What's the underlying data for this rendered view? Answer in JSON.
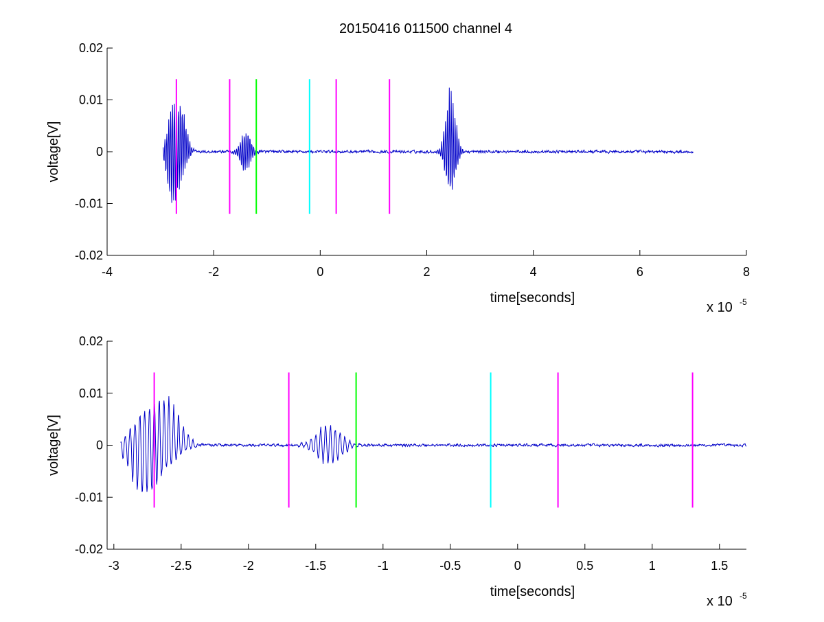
{
  "figure": {
    "title": "20150416 011500 channel 4",
    "background": "#ffffff",
    "signal_color": "#0000c8"
  },
  "chart_data": [
    {
      "type": "line",
      "id": "top",
      "xlabel": "time[seconds]",
      "ylabel": "voltage[V]",
      "x_exponent_base": "x 10",
      "x_exponent": "-5",
      "xlim": [
        -4e-05,
        8e-05
      ],
      "ylim": [
        -0.02,
        0.02
      ],
      "xticks": [
        -4e-05,
        -2e-05,
        0,
        2e-05,
        4e-05,
        6e-05,
        8e-05
      ],
      "xtick_labels": [
        "-4",
        "-2",
        "0",
        "2",
        "4",
        "6",
        "8"
      ],
      "yticks": [
        -0.02,
        -0.01,
        0,
        0.01,
        0.02
      ],
      "ytick_labels": [
        "-0.02",
        "-0.01",
        "0",
        "0.01",
        "0.02"
      ],
      "signal": {
        "x_range": [
          -2.95e-05,
          7e-05
        ],
        "bursts": [
          {
            "center": -2.78e-05,
            "peak": 0.0085,
            "min": -0.0108
          },
          {
            "center": -2.6e-05,
            "peak": 0.0093,
            "min": -0.0045
          },
          {
            "center": -1.4e-05,
            "peak": 0.0045,
            "min": -0.004
          },
          {
            "center": 2.45e-05,
            "peak": 0.0128,
            "min": -0.0095
          }
        ],
        "noise_amplitude": 0.0004
      },
      "markers": [
        {
          "x": -2.7e-05,
          "color": "#ff00ff",
          "y_range": [
            -0.012,
            0.014
          ]
        },
        {
          "x": -1.7e-05,
          "color": "#ff00ff",
          "y_range": [
            -0.012,
            0.014
          ]
        },
        {
          "x": -1.2e-05,
          "color": "#00ff00",
          "y_range": [
            -0.012,
            0.014
          ]
        },
        {
          "x": -2e-06,
          "color": "#00ffff",
          "y_range": [
            -0.012,
            0.014
          ]
        },
        {
          "x": 3e-06,
          "color": "#ff00ff",
          "y_range": [
            -0.012,
            0.014
          ]
        },
        {
          "x": 1.3e-05,
          "color": "#ff00ff",
          "y_range": [
            -0.012,
            0.014
          ]
        }
      ]
    },
    {
      "type": "line",
      "id": "bottom",
      "xlabel": "time[seconds]",
      "ylabel": "voltage[V]",
      "x_exponent_base": "x 10",
      "x_exponent": "-5",
      "xlim": [
        -3.05e-05,
        1.7e-05
      ],
      "ylim": [
        -0.02,
        0.02
      ],
      "xticks": [
        -3e-05,
        -2.5e-05,
        -2e-05,
        -1.5e-05,
        -1e-05,
        -5e-06,
        0,
        5e-06,
        1e-05,
        1.5e-05
      ],
      "xtick_labels": [
        "-3",
        "-2.5",
        "-2",
        "-1.5",
        "-1",
        "-0.5",
        "0",
        "0.5",
        "1",
        "1.5"
      ],
      "yticks": [
        -0.02,
        -0.01,
        0,
        0.01,
        0.02
      ],
      "ytick_labels": [
        "-0.02",
        "-0.01",
        "0",
        "0.01",
        "0.02"
      ],
      "signal": {
        "x_range": [
          -2.95e-05,
          1.7e-05
        ],
        "bursts": [
          {
            "center": -2.78e-05,
            "peak": 0.006,
            "min": -0.0108
          },
          {
            "center": -2.6e-05,
            "peak": 0.0093,
            "min": -0.0035
          },
          {
            "center": -1.4e-05,
            "peak": 0.0045,
            "min": -0.004
          }
        ],
        "noise_amplitude": 0.0004
      },
      "markers": [
        {
          "x": -2.7e-05,
          "color": "#ff00ff",
          "y_range": [
            -0.012,
            0.014
          ]
        },
        {
          "x": -1.7e-05,
          "color": "#ff00ff",
          "y_range": [
            -0.012,
            0.014
          ]
        },
        {
          "x": -1.2e-05,
          "color": "#00ff00",
          "y_range": [
            -0.012,
            0.014
          ]
        },
        {
          "x": -2e-06,
          "color": "#00ffff",
          "y_range": [
            -0.012,
            0.014
          ]
        },
        {
          "x": 3e-06,
          "color": "#ff00ff",
          "y_range": [
            -0.012,
            0.014
          ]
        },
        {
          "x": 1.3e-05,
          "color": "#ff00ff",
          "y_range": [
            -0.012,
            0.014
          ]
        }
      ]
    }
  ]
}
